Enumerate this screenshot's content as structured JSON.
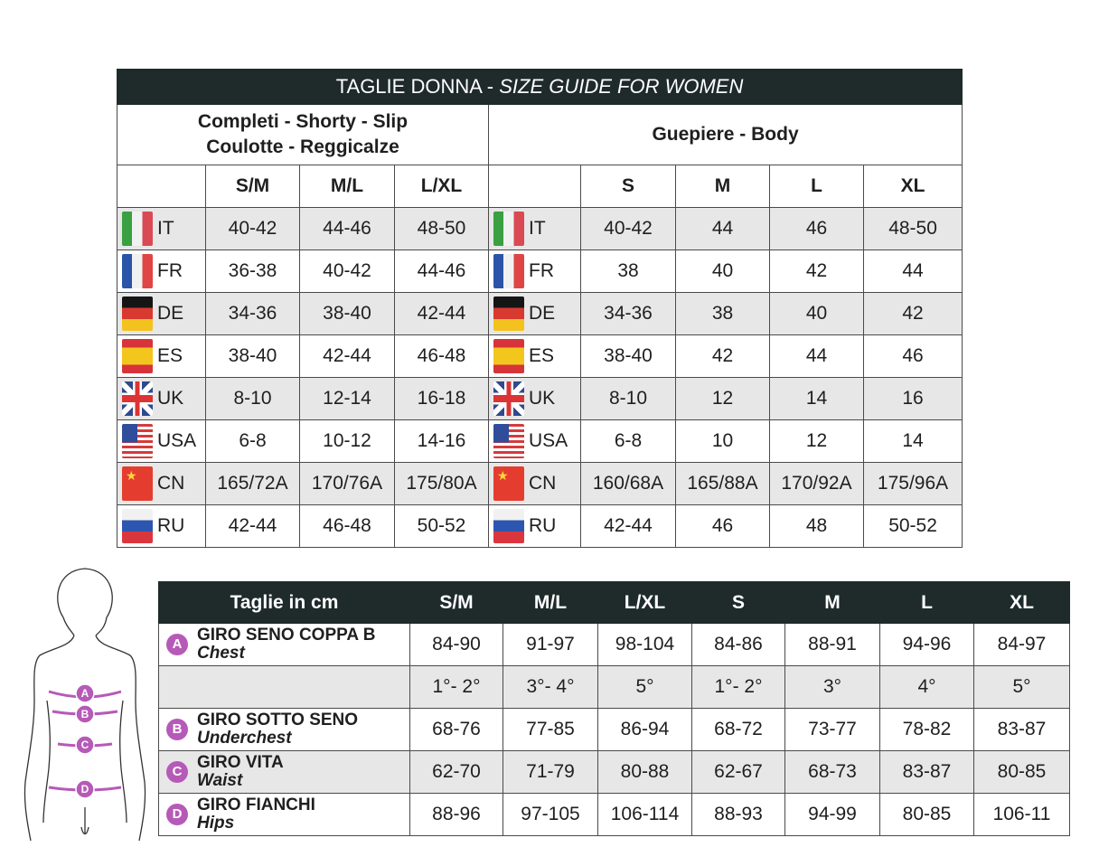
{
  "table1": {
    "title_main": "TAGLIE DONNA - ",
    "title_italic": "SIZE GUIDE FOR WOMEN",
    "group1_line1": "Completi - Shorty - Slip",
    "group1_line2": "Coulotte - Reggicalze",
    "group2": "Guepiere - Body",
    "sizes1": [
      "S/M",
      "M/L",
      "L/XL"
    ],
    "sizes2": [
      "S",
      "M",
      "L",
      "XL"
    ],
    "rows": [
      {
        "flag": "italy-flag",
        "country": "IT",
        "g1": [
          "40-42",
          "44-46",
          "48-50"
        ],
        "g2": [
          "40-42",
          "44",
          "46",
          "48-50"
        ]
      },
      {
        "flag": "france-flag",
        "country": "FR",
        "g1": [
          "36-38",
          "40-42",
          "44-46"
        ],
        "g2": [
          "38",
          "40",
          "42",
          "44"
        ]
      },
      {
        "flag": "germany-flag",
        "country": "DE",
        "g1": [
          "34-36",
          "38-40",
          "42-44"
        ],
        "g2": [
          "34-36",
          "38",
          "40",
          "42"
        ]
      },
      {
        "flag": "spain-flag",
        "country": "ES",
        "g1": [
          "38-40",
          "42-44",
          "46-48"
        ],
        "g2": [
          "38-40",
          "42",
          "44",
          "46"
        ]
      },
      {
        "flag": "uk-flag",
        "country": "UK",
        "g1": [
          "8-10",
          "12-14",
          "16-18"
        ],
        "g2": [
          "8-10",
          "12",
          "14",
          "16"
        ]
      },
      {
        "flag": "usa-flag",
        "country": "USA",
        "g1": [
          "6-8",
          "10-12",
          "14-16"
        ],
        "g2": [
          "6-8",
          "10",
          "12",
          "14"
        ]
      },
      {
        "flag": "china-flag",
        "country": "CN",
        "g1": [
          "165/72A",
          "170/76A",
          "175/80A"
        ],
        "g2": [
          "160/68A",
          "165/88A",
          "170/92A",
          "175/96A"
        ]
      },
      {
        "flag": "russia-flag",
        "country": "RU",
        "g1": [
          "42-44",
          "46-48",
          "50-52"
        ],
        "g2": [
          "42-44",
          "46",
          "48",
          "50-52"
        ]
      }
    ]
  },
  "table2": {
    "header": [
      "Taglie in cm",
      "S/M",
      "M/L",
      "L/XL",
      "S",
      "M",
      "L",
      "XL"
    ],
    "rows": [
      {
        "letter": "A",
        "it": "GIRO SENO COPPA B",
        "en": "Chest",
        "values": [
          "84-90",
          "91-97",
          "98-104",
          "84-86",
          "88-91",
          "94-96",
          "84-97"
        ]
      },
      {
        "letter": "",
        "it": "",
        "en": "",
        "values": [
          "1°- 2°",
          "3°- 4°",
          "5°",
          "1°- 2°",
          "3°",
          "4°",
          "5°"
        ]
      },
      {
        "letter": "B",
        "it": "GIRO SOTTO SENO",
        "en": "Underchest",
        "values": [
          "68-76",
          "77-85",
          "86-94",
          "68-72",
          "73-77",
          "78-82",
          "83-87"
        ]
      },
      {
        "letter": "C",
        "it": "GIRO VITA",
        "en": "Waist",
        "values": [
          "62-70",
          "71-79",
          "80-88",
          "62-67",
          "68-73",
          "83-87",
          "80-85"
        ]
      },
      {
        "letter": "D",
        "it": "GIRO FIANCHI",
        "en": "Hips",
        "values": [
          "88-96",
          "97-105",
          "106-114",
          "88-93",
          "94-99",
          "80-85",
          "106-11"
        ]
      }
    ]
  },
  "figure": {
    "labels": [
      "A",
      "B",
      "C",
      "D"
    ],
    "accent_color": "#b65ab8"
  }
}
